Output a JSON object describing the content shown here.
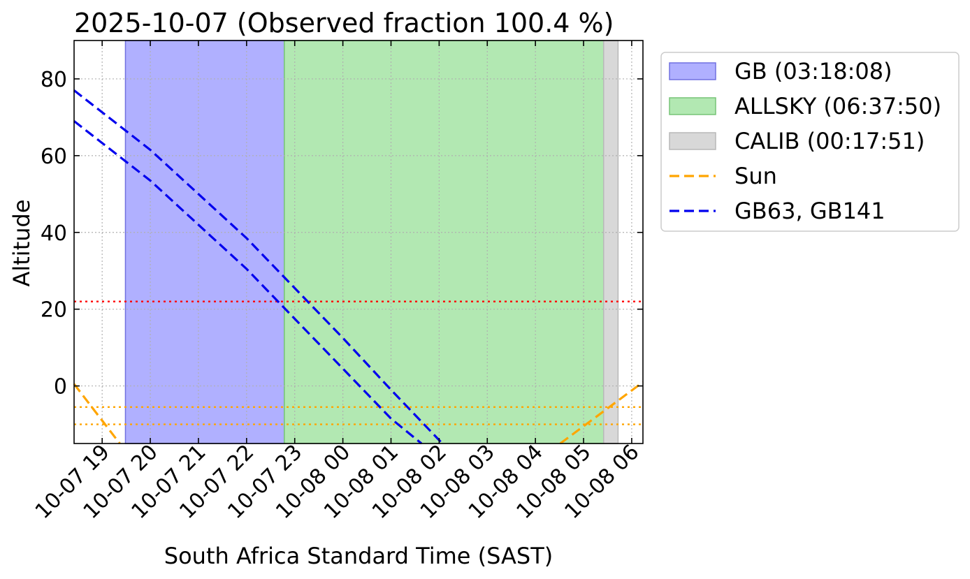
{
  "chart_data": {
    "type": "line",
    "title": "2025-10-07 (Observed fraction 100.4 %)",
    "xlabel": "South Africa Standard Time (SAST)",
    "ylabel": "Altitude",
    "x_scale": "time",
    "xlim": [
      "2025-10-07 18:25",
      "2025-10-08 06:14"
    ],
    "ylim": [
      -15,
      90
    ],
    "grid": true,
    "legend_position": "outside-right",
    "x_ticks": [
      "10-07 19",
      "10-07 20",
      "10-07 21",
      "10-07 22",
      "10-07 23",
      "10-08 00",
      "10-08 01",
      "10-08 02",
      "10-08 03",
      "10-08 04",
      "10-08 05",
      "10-08 06"
    ],
    "x_tick_times": [
      "2025-10-07 19:00",
      "2025-10-07 20:00",
      "2025-10-07 21:00",
      "2025-10-07 22:00",
      "2025-10-07 23:00",
      "2025-10-08 00:00",
      "2025-10-08 01:00",
      "2025-10-08 02:00",
      "2025-10-08 03:00",
      "2025-10-08 04:00",
      "2025-10-08 05:00",
      "2025-10-08 06:00"
    ],
    "y_ticks": [
      0,
      20,
      40,
      60,
      80
    ],
    "spans": [
      {
        "label": "GB (03:18:08)",
        "start": "2025-10-07 19:29",
        "end": "2025-10-07 22:47",
        "color": "#b0b0ff",
        "edge": "#7070e0"
      },
      {
        "label": "ALLSKY (06:37:50)",
        "start": "2025-10-07 22:47",
        "end": "2025-10-08 05:25",
        "color": "#b2e8b2",
        "edge": "#77c477"
      },
      {
        "label": "CALIB (00:17:51)",
        "start": "2025-10-08 05:25",
        "end": "2025-10-08 05:43",
        "color": "#d8d8d8",
        "edge": "#b8b8b8"
      }
    ],
    "series": [
      {
        "name": "Sun",
        "color": "#ffa500",
        "style": "dashed",
        "segments": [
          [
            [
              "2025-10-07 18:25",
              0.5
            ],
            [
              "2025-10-07 19:22",
              -15
            ]
          ],
          [
            [
              "2025-10-08 04:31",
              -15
            ],
            [
              "2025-10-08 06:14",
              1
            ]
          ]
        ]
      },
      {
        "name": "GB63, GB141",
        "color": "#0000ee",
        "style": "dashed",
        "segments": [
          [
            [
              "2025-10-07 18:25",
              77
            ],
            [
              "2025-10-07 20:00",
              61.5
            ],
            [
              "2025-10-07 22:00",
              38.5
            ],
            [
              "2025-10-08 00:00",
              12.5
            ],
            [
              "2025-10-08 01:00",
              -1
            ],
            [
              "2025-10-08 02:04",
              -15
            ]
          ],
          [
            [
              "2025-10-07 18:25",
              69
            ],
            [
              "2025-10-07 20:00",
              53.5
            ],
            [
              "2025-10-07 22:00",
              30.5
            ],
            [
              "2025-10-08 00:00",
              4.5
            ],
            [
              "2025-10-08 01:00",
              -8.5
            ],
            [
              "2025-10-08 01:38",
              -15
            ]
          ]
        ]
      }
    ],
    "hlines": [
      {
        "y": 22,
        "color": "#ff0000",
        "style": "dotted"
      },
      {
        "y": -5.5,
        "color": "#ffa500",
        "style": "dotted"
      },
      {
        "y": -10,
        "color": "#ffa500",
        "style": "dotted"
      }
    ],
    "legend": [
      {
        "label": "GB (03:18:08)",
        "kind": "patch",
        "color": "#b0b0ff",
        "edge": "#7070e0"
      },
      {
        "label": "ALLSKY (06:37:50)",
        "kind": "patch",
        "color": "#b2e8b2",
        "edge": "#77c477"
      },
      {
        "label": "CALIB (00:17:51)",
        "kind": "patch",
        "color": "#d8d8d8",
        "edge": "#b8b8b8"
      },
      {
        "label": "Sun",
        "kind": "line",
        "color": "#ffa500"
      },
      {
        "label": "GB63, GB141",
        "kind": "line",
        "color": "#0000ee"
      }
    ]
  }
}
